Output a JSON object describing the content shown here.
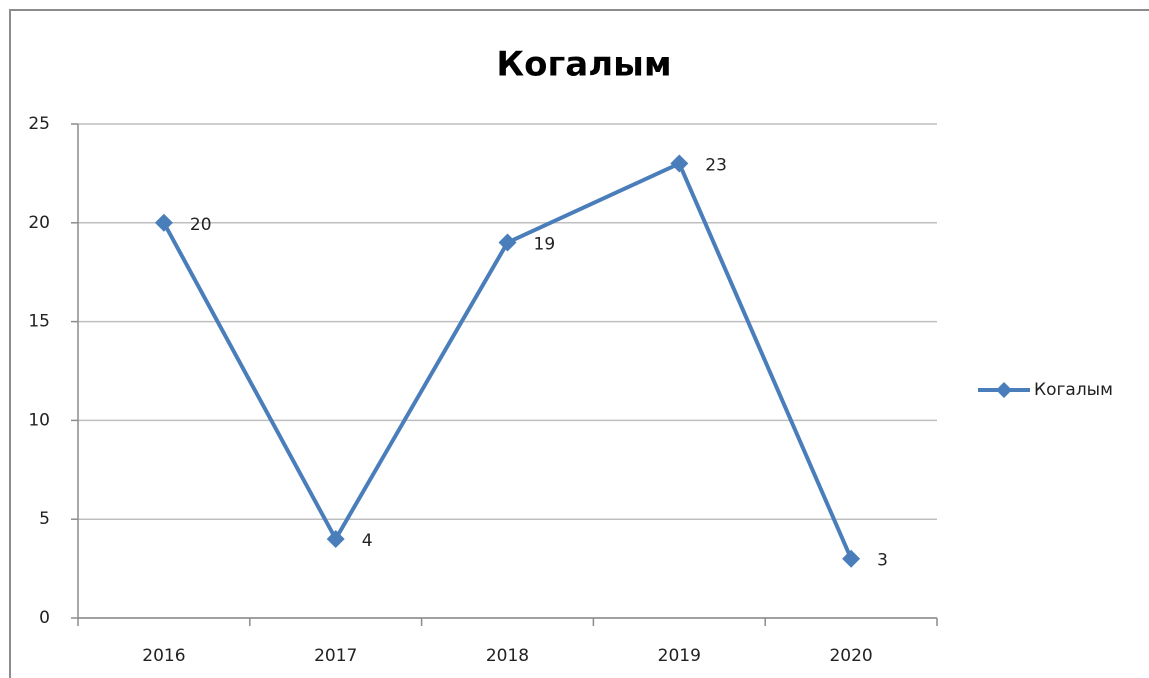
{
  "chart_data": {
    "type": "line",
    "title": "Когалым",
    "categories": [
      "2016",
      "2017",
      "2018",
      "2019",
      "2020"
    ],
    "series": [
      {
        "name": "Когалым",
        "color": "#4a7ebb",
        "values": [
          20,
          4,
          19,
          23,
          3
        ]
      }
    ],
    "ylim": [
      0,
      25
    ],
    "yticks": [
      0,
      5,
      10,
      15,
      20,
      25
    ],
    "grid": true,
    "legend": "right",
    "data_labels": true
  }
}
